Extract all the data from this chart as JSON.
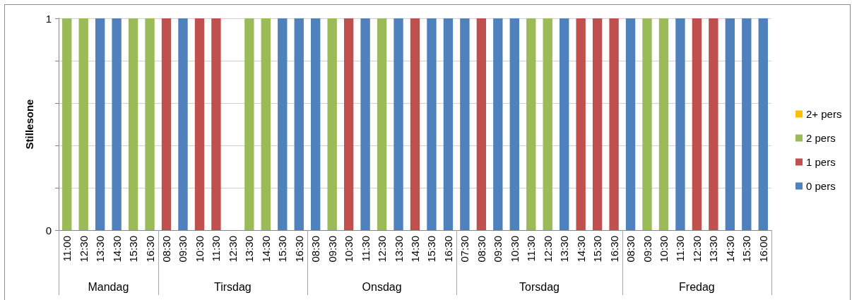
{
  "chart_data": {
    "type": "bar",
    "stacked": true,
    "ylabel": "Stillesone",
    "categories": [
      "11:00",
      "12:30",
      "13:30",
      "14:30",
      "15:30",
      "16:30",
      "08:30",
      "09:30",
      "10:30",
      "11:30",
      "12:30",
      "13:30",
      "14:30",
      "15:30",
      "16:30",
      "08:30",
      "09:30",
      "10:30",
      "11:30",
      "12:30",
      "13:30",
      "14:30",
      "15:30",
      "16:30",
      "07:30",
      "08:30",
      "09:30",
      "10:30",
      "11:30",
      "12:30",
      "13:30",
      "14:30",
      "15:30",
      "16:30",
      "08:30",
      "09:30",
      "10:30",
      "11:30",
      "12:30",
      "13:30",
      "14:30",
      "15:30",
      "16:00"
    ],
    "series": [
      {
        "name": "0 pers",
        "color": "#4f81bd",
        "values": [
          null,
          null,
          1,
          1,
          null,
          null,
          null,
          1,
          null,
          null,
          null,
          null,
          null,
          1,
          1,
          1,
          null,
          null,
          1,
          null,
          1,
          null,
          1,
          1,
          1,
          null,
          1,
          1,
          null,
          null,
          1,
          null,
          null,
          null,
          1,
          null,
          null,
          1,
          null,
          null,
          1,
          1,
          1
        ]
      },
      {
        "name": "1 pers",
        "color": "#c0504d",
        "values": [
          null,
          null,
          null,
          null,
          null,
          null,
          1,
          null,
          1,
          1,
          null,
          null,
          null,
          null,
          null,
          null,
          null,
          1,
          null,
          null,
          null,
          1,
          null,
          null,
          null,
          1,
          null,
          null,
          null,
          null,
          null,
          1,
          1,
          1,
          null,
          null,
          null,
          null,
          1,
          1,
          null,
          null,
          null
        ]
      },
      {
        "name": "2 pers",
        "color": "#9bbb59",
        "values": [
          1,
          1,
          null,
          null,
          1,
          1,
          null,
          null,
          null,
          null,
          null,
          1,
          1,
          null,
          null,
          null,
          1,
          null,
          null,
          1,
          null,
          null,
          null,
          null,
          null,
          null,
          null,
          null,
          1,
          1,
          null,
          null,
          null,
          null,
          null,
          1,
          1,
          null,
          null,
          null,
          null,
          null,
          null
        ]
      },
      {
        "name": "2+ pers",
        "color": "#ffc000",
        "values": [
          null,
          null,
          null,
          null,
          null,
          null,
          null,
          null,
          null,
          null,
          null,
          null,
          null,
          null,
          null,
          null,
          null,
          null,
          null,
          null,
          null,
          null,
          null,
          null,
          null,
          null,
          null,
          null,
          null,
          null,
          null,
          null,
          null,
          null,
          null,
          null,
          null,
          null,
          null,
          null,
          null,
          null,
          null
        ]
      }
    ],
    "ylim": [
      0,
      1
    ],
    "yticks": [
      0,
      {
        "value": 0.2,
        "label": null
      },
      {
        "value": 0.4,
        "label": null
      },
      {
        "value": 0.6,
        "label": null
      },
      {
        "value": 0.8,
        "label": null
      },
      1
    ],
    "grid": "y",
    "legend": "right",
    "annotations": [
      "Mandag",
      "Tirsdag",
      "Onsdag",
      "Torsdag",
      "Fredag"
    ]
  }
}
